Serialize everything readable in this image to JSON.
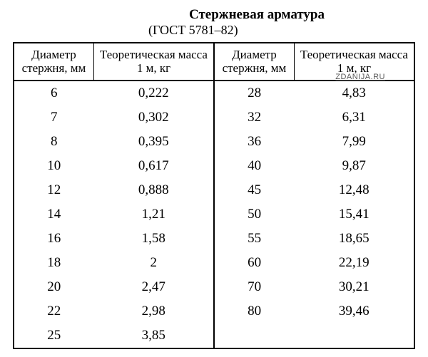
{
  "title": "Стержневая арматура",
  "subtitle": "(ГОСТ 5781–82)",
  "watermark": "ZDANIJA.RU",
  "headers": {
    "diameter": "Диаметр стержня, мм",
    "mass": "Теоретическая масса 1 м, кг"
  },
  "table": {
    "columns": [
      {
        "key": "d1",
        "width": "20%",
        "align": "center"
      },
      {
        "key": "m1",
        "width": "30%",
        "align": "center"
      },
      {
        "key": "d2",
        "width": "20%",
        "align": "center"
      },
      {
        "key": "m2",
        "width": "30%",
        "align": "center"
      }
    ],
    "header_fontsize": 17,
    "cell_fontsize": 19,
    "border_color": "#000000",
    "outer_border_width": 2,
    "inner_border_width": 1,
    "background_color": "#ffffff",
    "text_color": "#000000"
  },
  "rows": [
    {
      "d1": "6",
      "m1": "0,222",
      "d2": "28",
      "m2": "4,83"
    },
    {
      "d1": "7",
      "m1": "0,302",
      "d2": "32",
      "m2": "6,31"
    },
    {
      "d1": "8",
      "m1": "0,395",
      "d2": "36",
      "m2": "7,99"
    },
    {
      "d1": "10",
      "m1": "0,617",
      "d2": "40",
      "m2": "9,87"
    },
    {
      "d1": "12",
      "m1": "0,888",
      "d2": "45",
      "m2": "12,48"
    },
    {
      "d1": "14",
      "m1": "1,21",
      "d2": "50",
      "m2": "15,41"
    },
    {
      "d1": "16",
      "m1": "1,58",
      "d2": "55",
      "m2": "18,65"
    },
    {
      "d1": "18",
      "m1": "2",
      "d2": "60",
      "m2": "22,19"
    },
    {
      "d1": "20",
      "m1": "2,47",
      "d2": "70",
      "m2": "30,21"
    },
    {
      "d1": "22",
      "m1": "2,98",
      "d2": "80",
      "m2": "39,46"
    },
    {
      "d1": "25",
      "m1": "3,85",
      "d2": "",
      "m2": ""
    }
  ]
}
